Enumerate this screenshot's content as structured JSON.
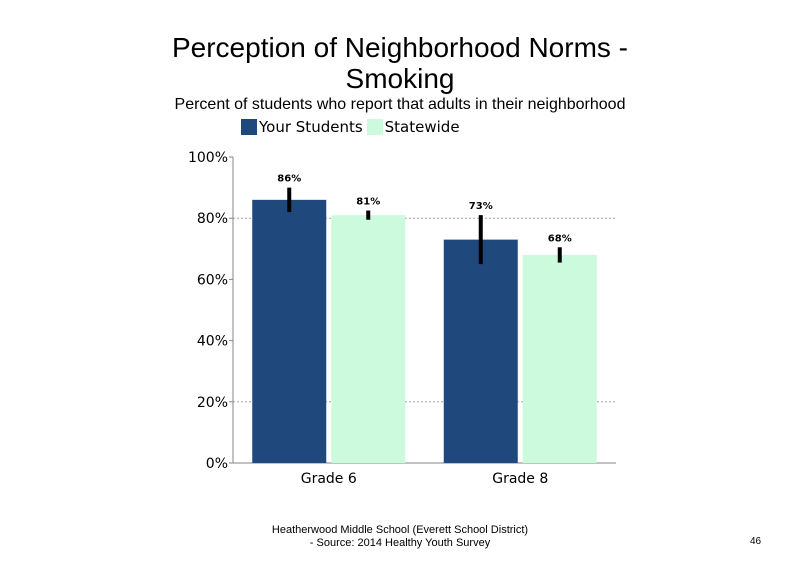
{
  "chart_data": {
    "type": "bar",
    "title_line1": "Perception of Neighborhood Norms -",
    "title_line2": "Smoking",
    "subtitle": "Percent of students who report that adults in their neighborhood",
    "xlabel": "",
    "ylabel": "",
    "categories": [
      "Grade 6",
      "Grade 8"
    ],
    "series": [
      {
        "name": "Your Students",
        "color": "#1f497d",
        "values": [
          86,
          73
        ],
        "labels": [
          "86%",
          "73%"
        ],
        "error_low": [
          82,
          65
        ],
        "error_high": [
          90,
          81
        ]
      },
      {
        "name": "Statewide",
        "color": "#ccfadd",
        "values": [
          81,
          68
        ],
        "labels": [
          "81%",
          "68%"
        ],
        "error_low": [
          79.5,
          65.5
        ],
        "error_high": [
          82.5,
          70.5
        ]
      }
    ],
    "ylim": [
      0,
      100
    ],
    "yticks": [
      0,
      20,
      40,
      60,
      80,
      100
    ],
    "ytick_labels": [
      "0%",
      "20%",
      "40%",
      "60%",
      "80%",
      "100%"
    ],
    "gridlines": [
      20,
      80
    ],
    "legend_position": "top-left"
  },
  "footer": {
    "line1": "Heatherwood Middle School (Everett School District)",
    "line2": "- Source: 2014 Healthy  Youth Survey"
  },
  "page_number": "46"
}
